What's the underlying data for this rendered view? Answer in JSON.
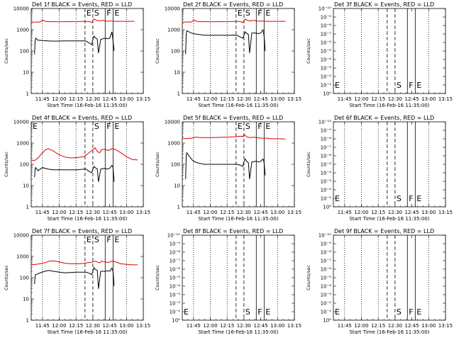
{
  "figure": {
    "xlabel": "Start Time (16-Feb-16 11:35:00)",
    "ylabel": "Counts/sec",
    "xticks": [
      "11:45",
      "12:00",
      "12:15",
      "12:30",
      "12:45",
      "13:00",
      "13:15"
    ],
    "x_domain_minutes": [
      0,
      100
    ],
    "colors": {
      "events": "#000000",
      "lld": "#dd0000"
    }
  },
  "chart_data": [
    {
      "type": "line",
      "title": "Det 1f BLACK = Events, RED = LLD",
      "ylabel": "Counts/sec",
      "xlabel": "Start Time (16-Feb-16 11:35:00)",
      "log_y": true,
      "ylim": [
        1,
        10000
      ],
      "ytick_labels": [
        "1",
        "10",
        "100",
        "1000",
        "10000"
      ],
      "markers": [
        {
          "label": "E",
          "x": 48
        },
        {
          "label": "S",
          "x": 55
        },
        {
          "label": "F",
          "x": 66
        },
        {
          "label": "E",
          "x": 73
        }
      ],
      "series": [
        {
          "color": "#dd0000",
          "x": [
            0,
            8,
            10,
            13,
            16,
            25,
            40,
            48,
            52,
            54,
            55,
            56,
            58,
            61,
            64,
            66,
            68,
            70,
            75,
            80,
            85,
            92
          ],
          "y": [
            2300,
            2300,
            2800,
            2500,
            2400,
            2400,
            2400,
            2500,
            2400,
            2200,
            2700,
            3200,
            2800,
            2600,
            2800,
            2600,
            2500,
            2600,
            2500,
            2500,
            2500,
            2500
          ]
        },
        {
          "color": "#000000",
          "x": [
            3,
            3.5,
            4,
            6,
            10,
            15,
            20,
            30,
            41,
            47,
            49,
            52,
            54,
            55,
            56,
            57,
            58,
            59,
            60,
            62,
            66,
            68,
            70,
            72,
            73,
            74
          ],
          "y": [
            70,
            300,
            400,
            320,
            310,
            300,
            290,
            300,
            300,
            300,
            290,
            230,
            200,
            350,
            500,
            420,
            400,
            350,
            80,
            350,
            400,
            380,
            400,
            800,
            300,
            100
          ]
        }
      ]
    },
    {
      "type": "line",
      "title": "Det 2f BLACK = Events, RED = LLD",
      "ylabel": "Counts/sec",
      "xlabel": "Start Time (16-Feb-16 11:35:00)",
      "log_y": true,
      "ylim": [
        1,
        10000
      ],
      "ytick_labels": [
        "1",
        "10",
        "100",
        "1000",
        "10000"
      ],
      "markers": [
        {
          "label": "E",
          "x": 48
        },
        {
          "label": "S",
          "x": 55
        },
        {
          "label": "F",
          "x": 66
        },
        {
          "label": "E",
          "x": 73
        }
      ],
      "series": [
        {
          "color": "#dd0000",
          "x": [
            0,
            8,
            10,
            13,
            16,
            25,
            40,
            48,
            52,
            54,
            55,
            56,
            58,
            61,
            64,
            66,
            68,
            70,
            75,
            80,
            85,
            92
          ],
          "y": [
            2300,
            2300,
            2800,
            2500,
            2400,
            2400,
            2400,
            2500,
            2400,
            2200,
            2700,
            3200,
            2800,
            2600,
            2800,
            2600,
            2500,
            2600,
            2500,
            2500,
            2500,
            2500
          ]
        },
        {
          "color": "#000000",
          "x": [
            3,
            3.5,
            4,
            6,
            8,
            10,
            15,
            20,
            30,
            41,
            47,
            49,
            52,
            54,
            55,
            56,
            57,
            58,
            59,
            60,
            62,
            66,
            68,
            70,
            72,
            73,
            74
          ],
          "y": [
            70,
            600,
            900,
            800,
            700,
            650,
            600,
            550,
            550,
            550,
            560,
            540,
            450,
            400,
            550,
            800,
            700,
            650,
            600,
            80,
            700,
            700,
            650,
            700,
            1000,
            500,
            100
          ]
        }
      ]
    },
    {
      "type": "line",
      "title": "Det 3f BLACK = Events, RED = LLD",
      "ylabel": "Counts/sec",
      "xlabel": "Start Time (16-Feb-16 11:35:00)",
      "log_y": false,
      "ylim": [
        0,
        1
      ],
      "ytick_labels": [
        "10⁰",
        "10⁻¹",
        "10⁻²",
        "10⁻³",
        "10⁻⁴",
        "10⁻⁵",
        "10⁻⁶",
        "10⁻⁷",
        "10⁻⁸",
        "10⁻⁹",
        "10⁻¹⁰"
      ],
      "markers": [
        {
          "label": "E",
          "x": 0
        },
        {
          "label": "S",
          "x": 55
        },
        {
          "label": "F",
          "x": 66
        },
        {
          "label": "E",
          "x": 73
        }
      ],
      "series": []
    },
    {
      "type": "line",
      "title": "Det 4f BLACK = Events, RED = LLD",
      "ylabel": "Counts/sec",
      "xlabel": "Start Time (16-Feb-16 11:35:00)",
      "log_y": true,
      "ylim": [
        1,
        10000
      ],
      "ytick_labels": [
        "1",
        "10",
        "100",
        "1000",
        "10000"
      ],
      "markers": [
        {
          "label": "E",
          "x": 0
        },
        {
          "label": "S",
          "x": 55
        },
        {
          "label": "F",
          "x": 66
        },
        {
          "label": "E",
          "x": 73
        }
      ],
      "series": [
        {
          "color": "#dd0000",
          "x": [
            0,
            3,
            6,
            9,
            12,
            15,
            19,
            24,
            30,
            36,
            42,
            47,
            50,
            53,
            55,
            57,
            59,
            61,
            63,
            66,
            69,
            72,
            75,
            80,
            85,
            90,
            95
          ],
          "y": [
            160,
            150,
            200,
            300,
            450,
            550,
            450,
            300,
            220,
            200,
            210,
            230,
            300,
            400,
            480,
            600,
            400,
            350,
            500,
            500,
            450,
            550,
            500,
            350,
            230,
            170,
            160
          ]
        },
        {
          "color": "#000000",
          "x": [
            3,
            3.5,
            4,
            6,
            10,
            15,
            20,
            30,
            41,
            47,
            49,
            52,
            54,
            55,
            56,
            57,
            58,
            59,
            60,
            62,
            66,
            68,
            70,
            72,
            73,
            74
          ],
          "y": [
            25,
            60,
            70,
            50,
            70,
            60,
            55,
            55,
            55,
            60,
            60,
            45,
            40,
            60,
            80,
            70,
            65,
            60,
            15,
            60,
            65,
            60,
            65,
            90,
            70,
            15
          ]
        }
      ]
    },
    {
      "type": "line",
      "title": "Det 5f BLACK = Events, RED = LLD",
      "ylabel": "Counts/sec",
      "xlabel": "Start Time (16-Feb-16 11:35:00)",
      "log_y": true,
      "ylim": [
        1,
        10000
      ],
      "ytick_labels": [
        "1",
        "10",
        "100",
        "1000",
        "10000"
      ],
      "markers": [
        {
          "label": "E",
          "x": 48
        },
        {
          "label": "S",
          "x": 55
        },
        {
          "label": "F",
          "x": 66
        },
        {
          "label": "E",
          "x": 73
        }
      ],
      "series": [
        {
          "color": "#dd0000",
          "x": [
            0,
            8,
            12,
            16,
            25,
            40,
            48,
            52,
            54,
            55,
            56,
            58,
            61,
            64,
            66,
            70,
            75,
            80,
            85,
            92
          ],
          "y": [
            1600,
            1700,
            1900,
            1800,
            1800,
            1900,
            2000,
            2100,
            2000,
            2500,
            2300,
            1900,
            1800,
            1900,
            1800,
            1700,
            1700,
            1600,
            1600,
            1550
          ]
        },
        {
          "color": "#000000",
          "x": [
            3,
            3.5,
            4,
            6,
            8,
            10,
            13,
            16,
            20,
            30,
            41,
            47,
            49,
            52,
            54,
            55,
            56,
            57,
            58,
            59,
            60,
            62,
            66,
            68,
            70,
            72,
            73,
            74
          ],
          "y": [
            20,
            250,
            350,
            250,
            180,
            140,
            120,
            110,
            100,
            100,
            100,
            100,
            100,
            90,
            80,
            130,
            180,
            150,
            130,
            120,
            20,
            130,
            140,
            130,
            140,
            180,
            120,
            30
          ]
        }
      ]
    },
    {
      "type": "line",
      "title": "Det 6f BLACK = Events, RED = LLD",
      "ylabel": "Counts/sec",
      "xlabel": "Start Time (16-Feb-16 11:35:00)",
      "log_y": false,
      "ylim": [
        0,
        1
      ],
      "ytick_labels": [
        "10⁰",
        "10⁻¹",
        "10⁻²",
        "10⁻³",
        "10⁻⁴",
        "10⁻⁵",
        "10⁻⁶",
        "10⁻⁷",
        "10⁻⁸",
        "10⁻⁹",
        "10⁻¹⁰"
      ],
      "markers": [
        {
          "label": "E",
          "x": 0
        },
        {
          "label": "S",
          "x": 55
        },
        {
          "label": "F",
          "x": 66
        },
        {
          "label": "E",
          "x": 73
        }
      ],
      "series": []
    },
    {
      "type": "line",
      "title": "Det 7f BLACK = Events, RED = LLD",
      "ylabel": "Counts/sec",
      "xlabel": "Start Time (16-Feb-16 11:35:00)",
      "log_y": true,
      "ylim": [
        1,
        10000
      ],
      "ytick_labels": [
        "1",
        "10",
        "100",
        "1000",
        "10000"
      ],
      "markers": [
        {
          "label": "E",
          "x": 48
        },
        {
          "label": "S",
          "x": 55
        },
        {
          "label": "F",
          "x": 66
        },
        {
          "label": "E",
          "x": 73
        }
      ],
      "series": [
        {
          "color": "#dd0000",
          "x": [
            0,
            4,
            8,
            12,
            16,
            20,
            25,
            30,
            36,
            42,
            47,
            50,
            53,
            55,
            57,
            59,
            61,
            63,
            66,
            69,
            72,
            75,
            80,
            85,
            90,
            95
          ],
          "y": [
            400,
            420,
            450,
            500,
            600,
            620,
            550,
            480,
            450,
            450,
            470,
            500,
            520,
            550,
            600,
            550,
            500,
            600,
            550,
            520,
            600,
            560,
            450,
            420,
            400,
            400
          ]
        },
        {
          "color": "#000000",
          "x": [
            3,
            3.5,
            4,
            6,
            8,
            12,
            16,
            20,
            25,
            30,
            41,
            47,
            49,
            52,
            54,
            55,
            56,
            57,
            58,
            59,
            60,
            62,
            66,
            68,
            70,
            72,
            73,
            74
          ],
          "y": [
            50,
            120,
            140,
            150,
            170,
            200,
            220,
            200,
            180,
            170,
            180,
            180,
            180,
            160,
            140,
            200,
            300,
            250,
            230,
            220,
            30,
            200,
            200,
            210,
            200,
            280,
            200,
            40
          ]
        }
      ]
    },
    {
      "type": "line",
      "title": "Det 8f BLACK = Events, RED = LLD",
      "ylabel": "Counts/sec",
      "xlabel": "Start Time (16-Feb-16 11:35:00)",
      "log_y": false,
      "ylim": [
        0,
        1
      ],
      "ytick_labels": [
        "10⁰",
        "10⁻¹",
        "10⁻²",
        "10⁻³",
        "10⁻⁴",
        "10⁻⁵",
        "10⁻⁶",
        "10⁻⁷",
        "10⁻⁸",
        "10⁻⁹",
        "10⁻¹⁰"
      ],
      "markers": [
        {
          "label": "E",
          "x": 0
        },
        {
          "label": "S",
          "x": 55
        },
        {
          "label": "F",
          "x": 66
        },
        {
          "label": "E",
          "x": 73
        }
      ],
      "series": []
    },
    {
      "type": "line",
      "title": "Det 9f BLACK = Events, RED = LLD",
      "ylabel": "Counts/sec",
      "xlabel": "Start Time (16-Feb-16 11:35:00)",
      "log_y": false,
      "ylim": [
        0,
        1
      ],
      "ytick_labels": [
        "10⁰",
        "10⁻¹",
        "10⁻²",
        "10⁻³",
        "10⁻⁴",
        "10⁻⁵",
        "10⁻⁶",
        "10⁻⁷",
        "10⁻⁸",
        "10⁻⁹",
        "10⁻¹⁰"
      ],
      "markers": [
        {
          "label": "E",
          "x": 0
        },
        {
          "label": "S",
          "x": 55
        },
        {
          "label": "F",
          "x": 66
        },
        {
          "label": "E",
          "x": 73
        }
      ],
      "series": []
    }
  ]
}
